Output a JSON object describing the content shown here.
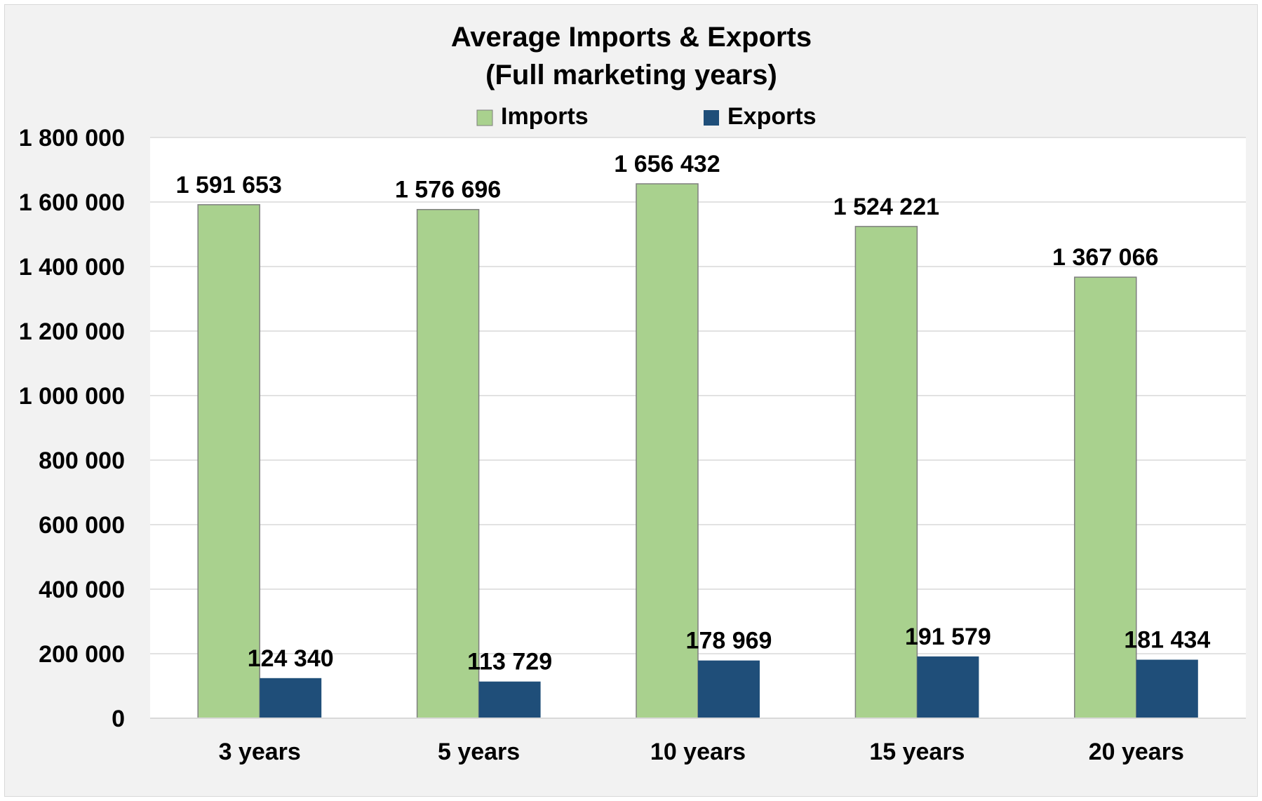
{
  "chart_data": {
    "type": "bar",
    "title": "Average Imports & Exports",
    "subtitle": "(Full marketing years)",
    "categories": [
      "3 years",
      "5 years",
      "10 years",
      "15 years",
      "20 years"
    ],
    "series": [
      {
        "name": "Imports",
        "color": "#a9d18e",
        "values": [
          1591653,
          1576696,
          1656432,
          1524221,
          1367066
        ],
        "labels": [
          "1 591 653",
          "1 576 696",
          "1 656 432",
          "1 524 221",
          "1 367 066"
        ]
      },
      {
        "name": "Exports",
        "color": "#1f4e79",
        "values": [
          124340,
          113729,
          178969,
          191579,
          181434
        ],
        "labels": [
          "124 340",
          "113 729",
          "178 969",
          "191 579",
          "181 434"
        ]
      }
    ],
    "yticks": [
      0,
      200000,
      400000,
      600000,
      800000,
      1000000,
      1200000,
      1400000,
      1600000,
      1800000
    ],
    "ytick_labels": [
      "0",
      "200 000",
      "400 000",
      "600 000",
      "800 000",
      "1 000 000",
      "1 200 000",
      "1 400 000",
      "1 600 000",
      "1 800 000"
    ],
    "ylim": [
      0,
      1800000
    ],
    "grid": true,
    "legend_position": "top"
  }
}
